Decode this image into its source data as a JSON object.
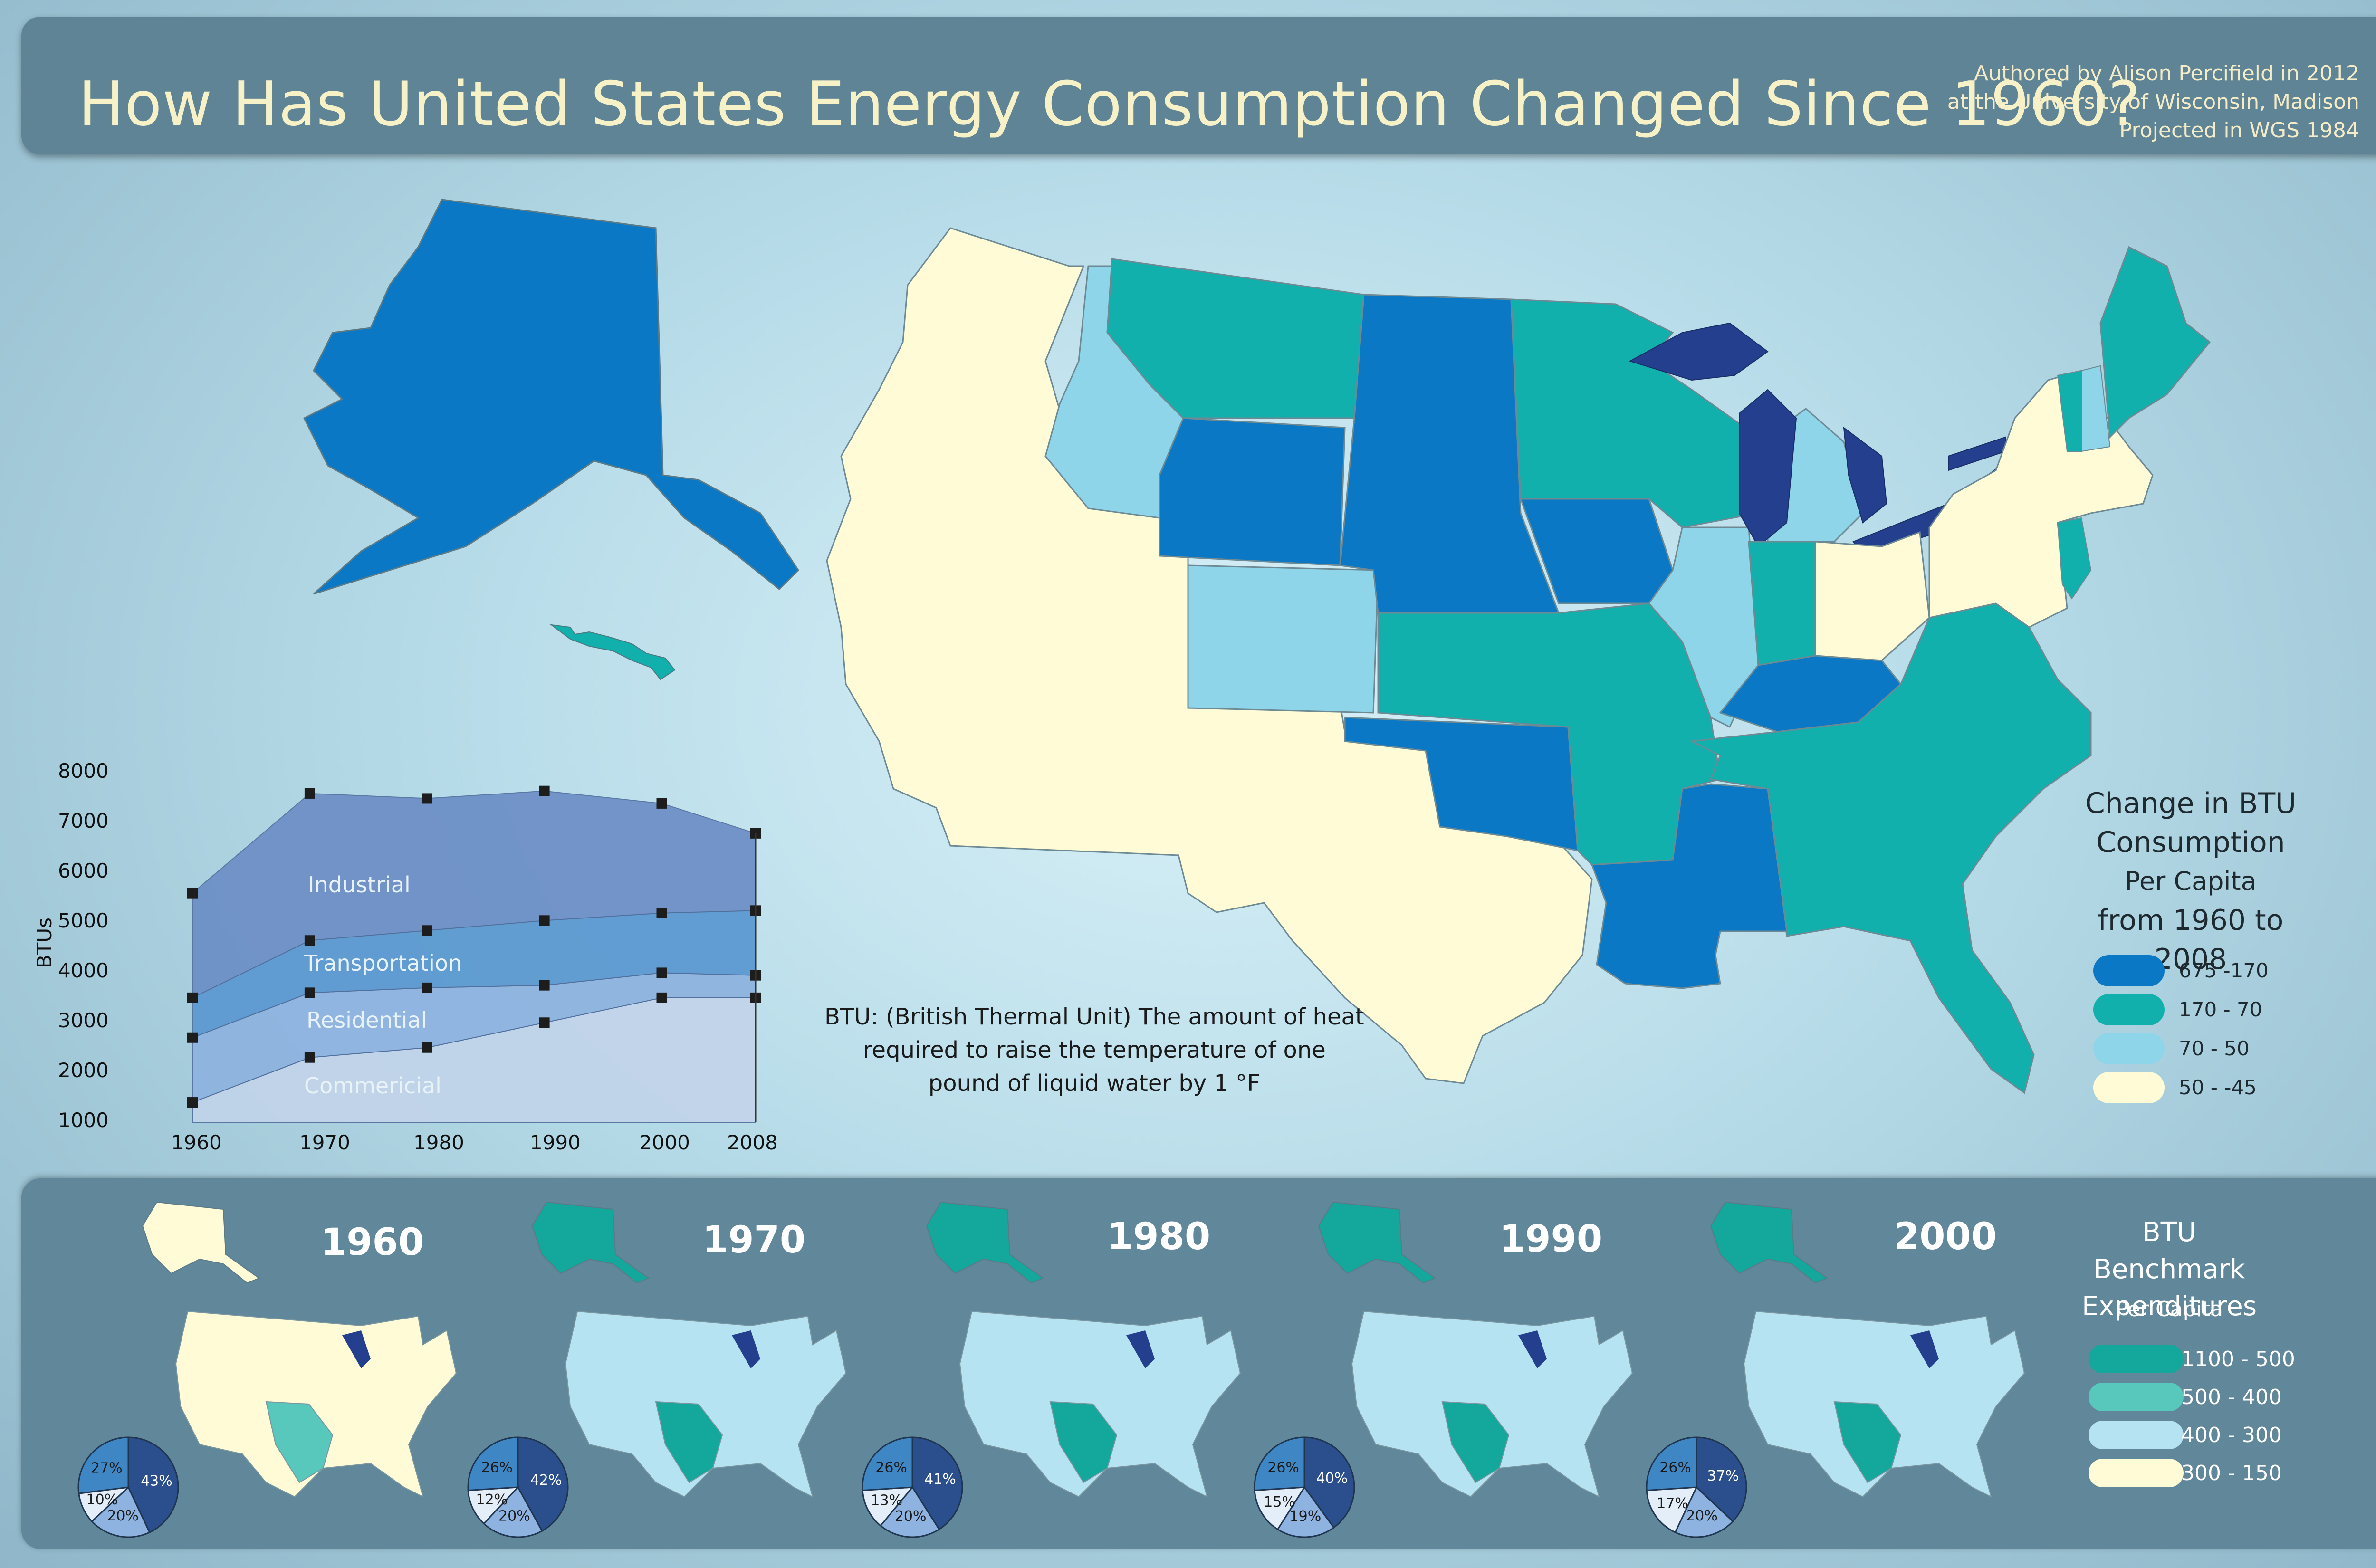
{
  "header": {
    "title": "How Has United States Energy Consumption Changed Since 1960?",
    "credits": [
      "Authored by Alison Percifield in 2012",
      "at the University of Wisconsin, Madison",
      "Projected in WGS 1984"
    ]
  },
  "colors": {
    "class_675_170": "#0a78c4",
    "class_170_70": "#12b0ad",
    "class_70_50": "#8ed5ea",
    "class_50_neg45": "#fefbd6",
    "great_lakes": "#233f8e",
    "bm_1100_500": "#14a79b",
    "bm_500_400": "#58c7bc",
    "bm_400_300": "#b6e3f1",
    "bm_300_150": "#fefbd6"
  },
  "legend": {
    "title_line1": "Change in BTU",
    "title_line2": "Consumption",
    "title_line3": "Per Capita",
    "title_line4": "from 1960 to 2008",
    "items": [
      "675 -170",
      "170 - 70",
      "70 - 50",
      "50 - -45"
    ]
  },
  "definition": {
    "line1": "BTU: (British Thermal Unit) The amount of heat",
    "line2": "required to raise the temperature of one",
    "line3": "pound of liquid water by 1 °F"
  },
  "chart_data": {
    "type": "area",
    "title": "",
    "xlabel": "",
    "ylabel": "BTUs",
    "x": [
      1960,
      1970,
      1980,
      1990,
      2000,
      2008
    ],
    "x_ticks": [
      "1960",
      "1970",
      "1980",
      "1990",
      "2000",
      "2008"
    ],
    "y_ticks": [
      "1000",
      "2000",
      "3000",
      "4000",
      "5000",
      "6000",
      "7000",
      "8000"
    ],
    "ylim": [
      1000,
      8000
    ],
    "series": [
      {
        "name": "Commericial",
        "values": [
          1400,
          2300,
          2500,
          3000,
          3500,
          3500
        ]
      },
      {
        "name": "Residential",
        "values": [
          2700,
          3600,
          3700,
          3750,
          4000,
          3950
        ]
      },
      {
        "name": "Transportation",
        "values": [
          3500,
          4650,
          4850,
          5050,
          5200,
          5250
        ]
      },
      {
        "name": "Industrial",
        "values": [
          5600,
          7600,
          7500,
          7650,
          7400,
          6800
        ]
      }
    ]
  },
  "benchmarks": {
    "years": [
      "1960",
      "1970",
      "1980",
      "1990",
      "2000"
    ],
    "pies": [
      {
        "labels": [
          "43%",
          "20%",
          "10%",
          "27%"
        ],
        "values": [
          43,
          20,
          10,
          27
        ]
      },
      {
        "labels": [
          "42%",
          "20%",
          "12%",
          "26%"
        ],
        "values": [
          42,
          20,
          12,
          26
        ]
      },
      {
        "labels": [
          "41%",
          "20%",
          "13%",
          "26%"
        ],
        "values": [
          41,
          20,
          13,
          26
        ]
      },
      {
        "labels": [
          "40%",
          "19%",
          "15%",
          "26%"
        ],
        "values": [
          40,
          19,
          15,
          26
        ]
      },
      {
        "labels": [
          "37%",
          "20%",
          "17%",
          "26%"
        ],
        "values": [
          37,
          20,
          17,
          26
        ]
      }
    ],
    "pie_colors": [
      "#2a4f8c",
      "#8fb3e0",
      "#e4eef8",
      "#3f86c4"
    ],
    "legend_title_line1": "BTU Benchmark",
    "legend_title_line2": "Expenditures",
    "legend_sub": "Per Capita",
    "legend_items": [
      "1100 - 500",
      "500 - 400",
      "400 - 300",
      "300 - 150"
    ]
  }
}
